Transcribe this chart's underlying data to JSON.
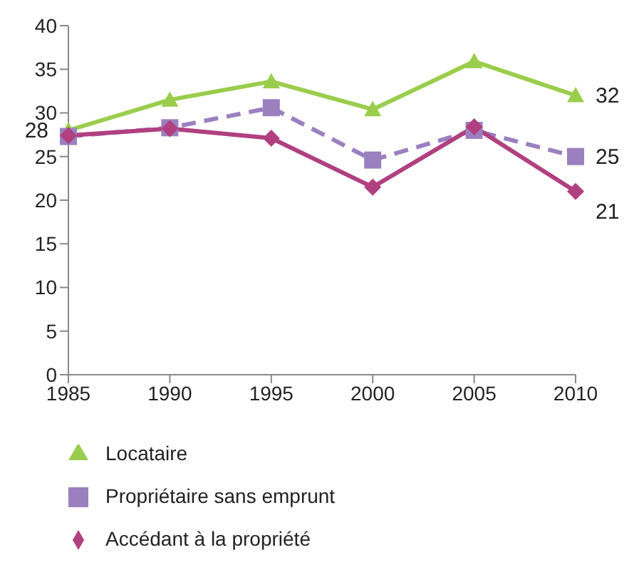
{
  "chart_data": {
    "type": "line",
    "categories": [
      "1985",
      "1990",
      "1995",
      "2000",
      "2005",
      "2010"
    ],
    "series": [
      {
        "name": "Locataire",
        "color": "#9acd4c",
        "marker": "triangle",
        "line_style": "solid",
        "values": [
          28,
          31.5,
          33.6,
          30.4,
          35.9,
          32
        ],
        "value_labels": [
          "28",
          null,
          null,
          null,
          null,
          "32"
        ]
      },
      {
        "name": "Propriétaire sans emprunt",
        "color": "#9b80c0",
        "marker": "square",
        "line_style": "dashed",
        "values": [
          27.3,
          28.3,
          30.6,
          24.6,
          28,
          25
        ],
        "value_labels": [
          null,
          null,
          null,
          null,
          null,
          "25"
        ]
      },
      {
        "name": "Accédant à la propriété",
        "color": "#b0407f",
        "marker": "diamond",
        "line_style": "solid",
        "values": [
          27.4,
          28.2,
          27.1,
          21.5,
          28.4,
          21
        ],
        "value_labels": [
          null,
          null,
          null,
          null,
          null,
          "21"
        ]
      }
    ],
    "ylim": [
      0,
      40
    ],
    "yticks": [
      0,
      5,
      10,
      15,
      20,
      25,
      30,
      35,
      40
    ],
    "grid": false,
    "legend": "bottom"
  }
}
